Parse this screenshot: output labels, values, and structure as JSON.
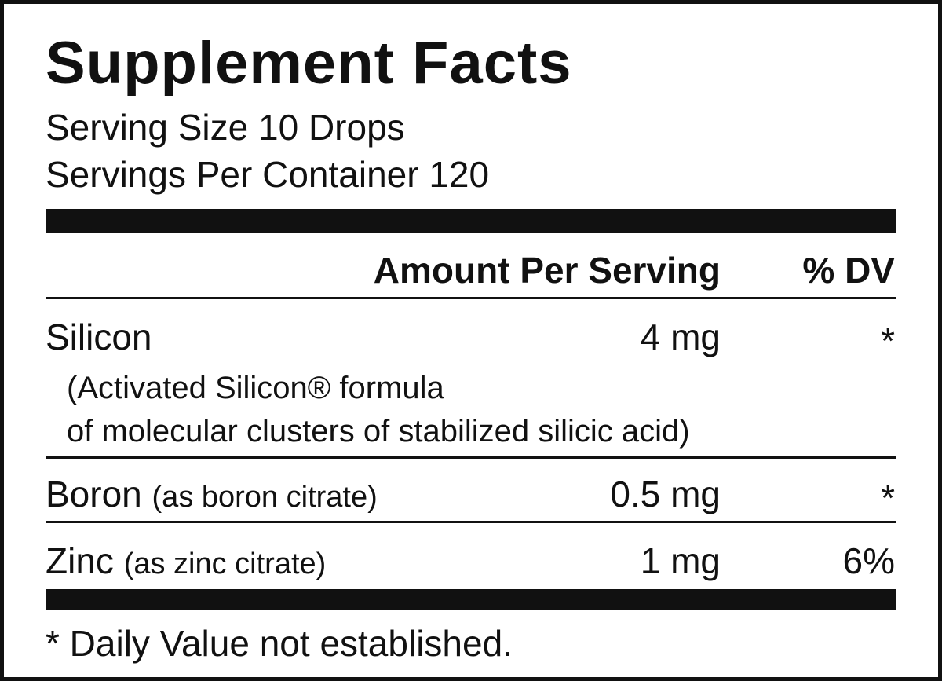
{
  "title": "Supplement Facts",
  "serving_size": "Serving Size 10 Drops",
  "servings_per_container": "Servings Per Container 120",
  "header": {
    "amount": "Amount Per Serving",
    "dv": "% DV"
  },
  "rows": [
    {
      "name": "Silicon",
      "amount": "4 mg",
      "dv": "*",
      "note": [
        "(Activated Silicon® formula",
        "of molecular clusters of stabilized silicic acid)"
      ]
    },
    {
      "name": "Boron",
      "source": "(as boron citrate)",
      "amount": "0.5 mg",
      "dv": "*"
    },
    {
      "name": "Zinc",
      "source": "(as zinc citrate)",
      "amount": "1 mg",
      "dv": "6%"
    }
  ],
  "footnote": "* Daily Value not established."
}
